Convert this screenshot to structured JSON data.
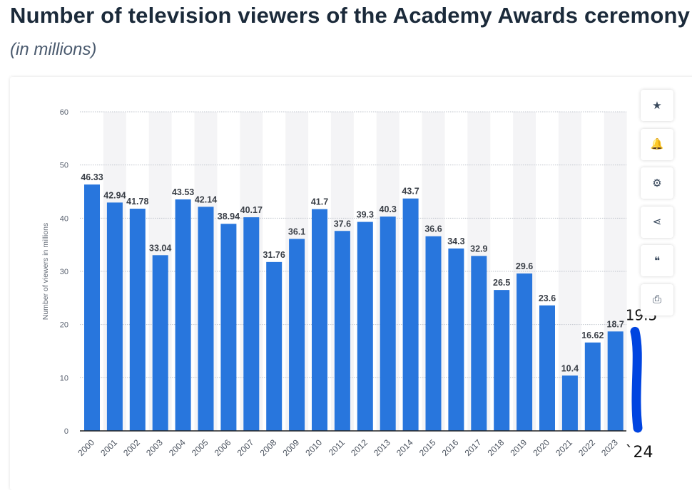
{
  "title": "Number of television viewers of the Academy Awards ceremony",
  "subtitle": "(in millions)",
  "toolbar": [
    {
      "name": "star-icon",
      "glyph": "★"
    },
    {
      "name": "bell-icon",
      "glyph": "🔔"
    },
    {
      "name": "gear-icon",
      "glyph": "⚙"
    },
    {
      "name": "share-icon",
      "glyph": "⋖"
    },
    {
      "name": "quote-icon",
      "glyph": "❝"
    },
    {
      "name": "print-icon",
      "glyph": "⎙"
    }
  ],
  "chart_data": {
    "type": "bar",
    "ylabel": "Number of viewers in millions",
    "ylim": [
      0,
      60
    ],
    "yticks": [
      0,
      10,
      20,
      30,
      40,
      50,
      60
    ],
    "grid": true,
    "bar_color": "#2876dd",
    "categories": [
      "2000",
      "2001",
      "2002",
      "2003",
      "2004",
      "2005",
      "2006",
      "2007",
      "2008",
      "2009",
      "2010",
      "2011",
      "2012",
      "2013",
      "2014",
      "2015",
      "2016",
      "2017",
      "2018",
      "2019",
      "2020",
      "2021",
      "2022",
      "2023"
    ],
    "values": [
      46.33,
      42.94,
      41.78,
      33.04,
      43.53,
      42.14,
      38.94,
      40.17,
      31.76,
      36.1,
      41.7,
      37.6,
      39.3,
      40.3,
      43.7,
      36.6,
      34.3,
      32.9,
      26.5,
      29.6,
      23.6,
      10.4,
      16.62,
      18.7
    ],
    "labels": [
      "46.33",
      "42.94",
      "41.78",
      "33.04",
      "43.53",
      "42.14",
      "38.94",
      "40.17",
      "31.76",
      "36.1",
      "41.7",
      "37.6",
      "39.3",
      "40.3",
      "43.7",
      "36.6",
      "34.3",
      "32.9",
      "26.5",
      "29.6",
      "23.6",
      "10.4",
      "16.62",
      "18.7"
    ],
    "annotation": {
      "category": "`24",
      "value": 19.5,
      "label": "19.5",
      "color": "#0044e0"
    }
  }
}
